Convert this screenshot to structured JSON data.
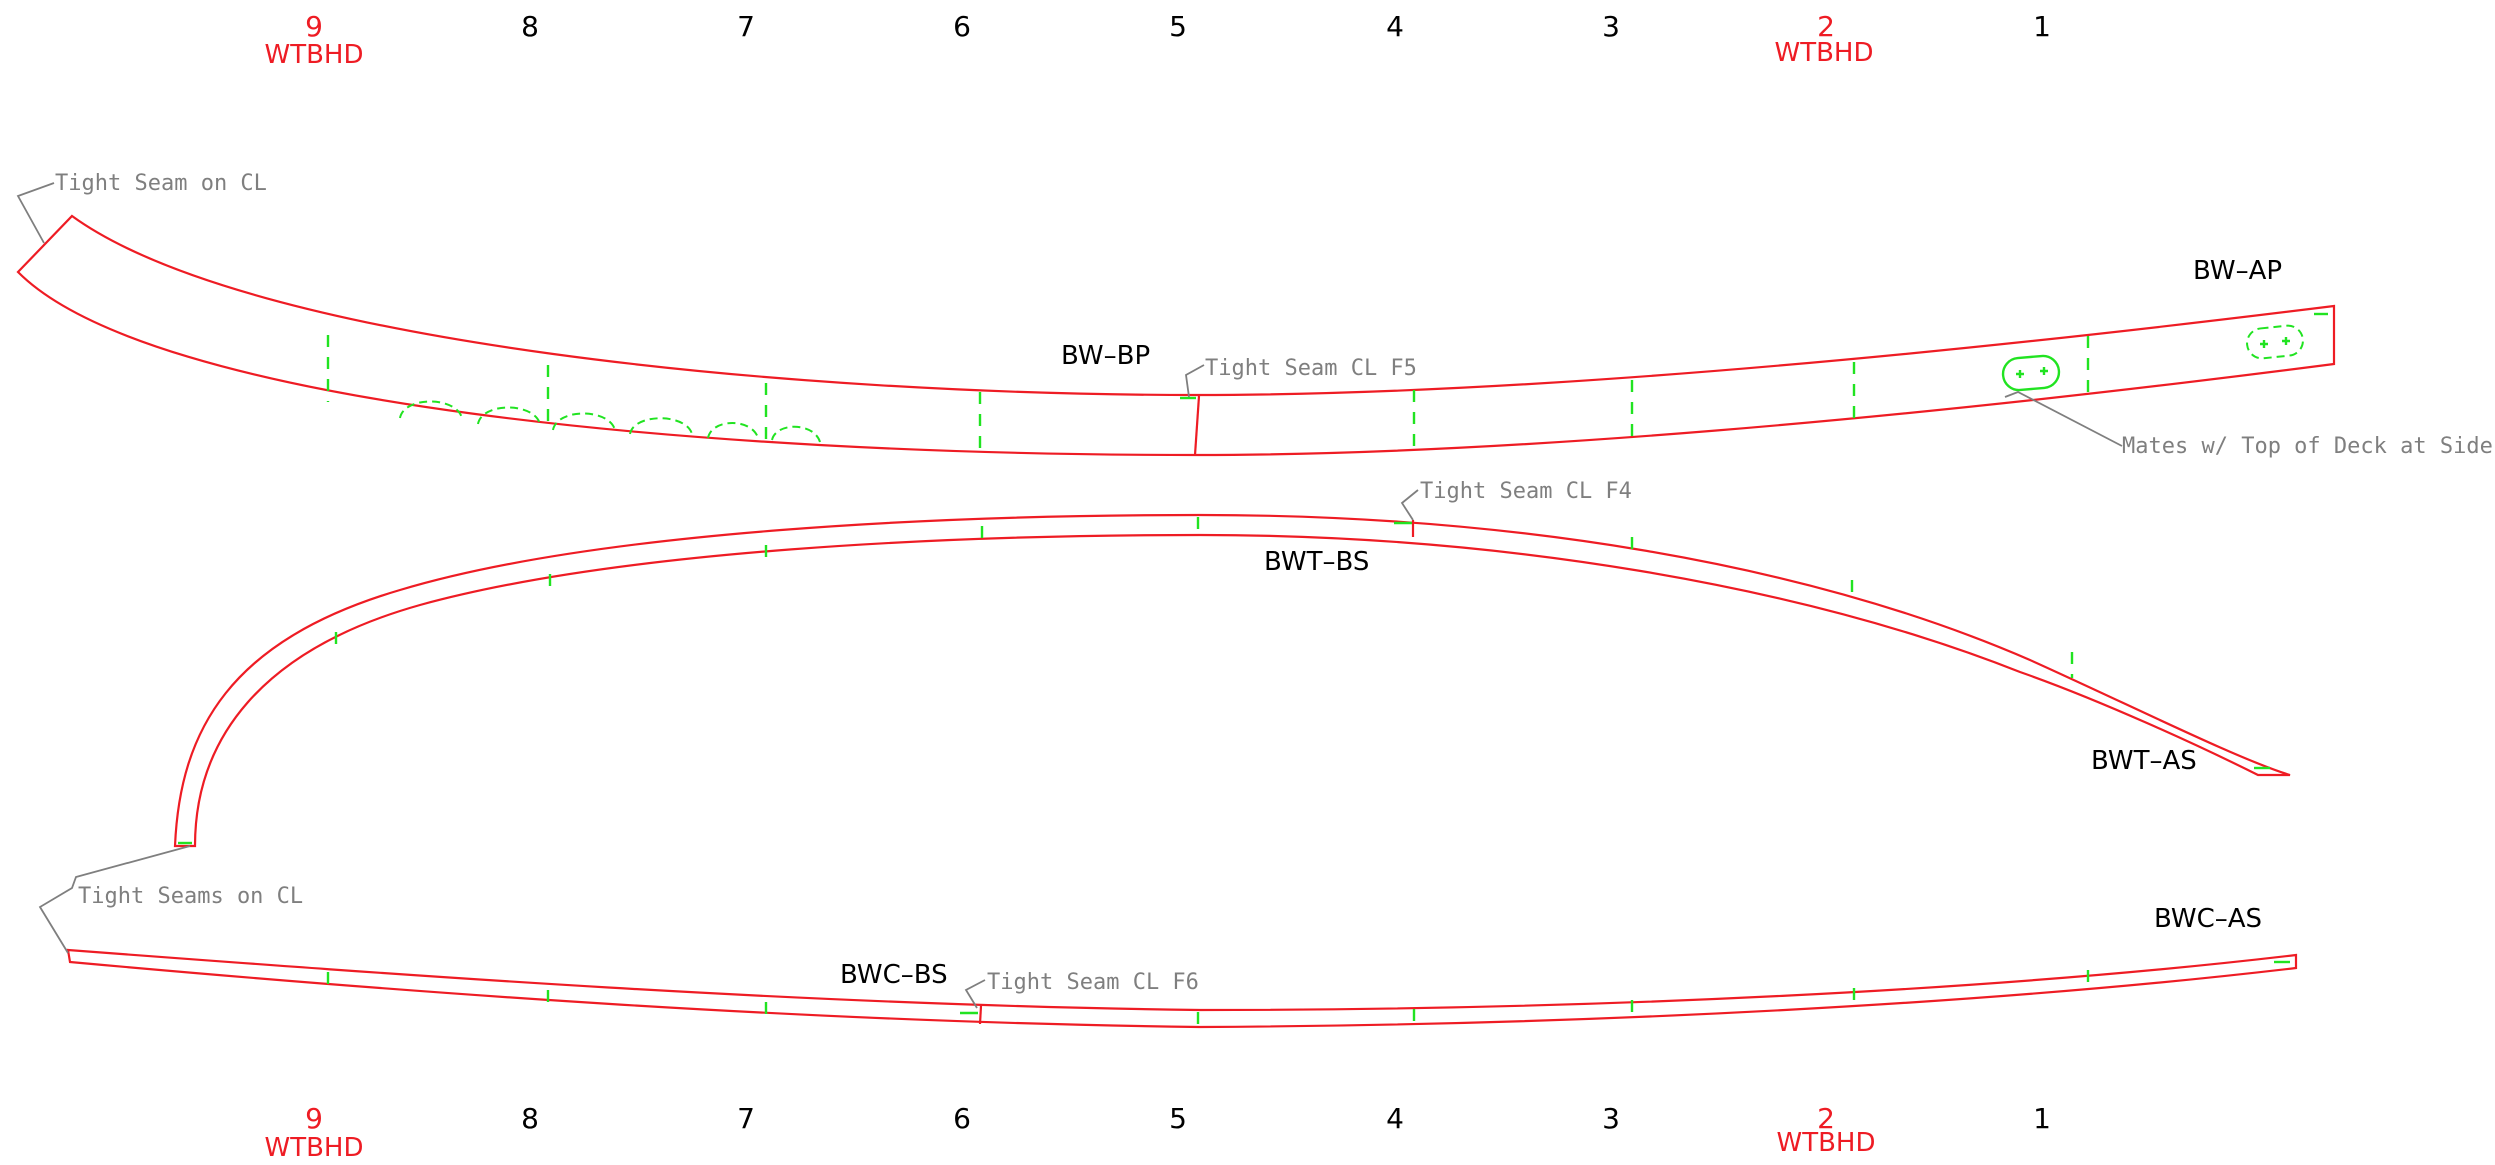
{
  "frames_top": [
    {
      "label": "9",
      "sub": "WTBHD",
      "bulkhead": true
    },
    {
      "label": "8",
      "sub": "",
      "bulkhead": false
    },
    {
      "label": "7",
      "sub": "",
      "bulkhead": false
    },
    {
      "label": "6",
      "sub": "",
      "bulkhead": false
    },
    {
      "label": "5",
      "sub": "",
      "bulkhead": false
    },
    {
      "label": "4",
      "sub": "",
      "bulkhead": false
    },
    {
      "label": "3",
      "sub": "",
      "bulkhead": false
    },
    {
      "label": "2",
      "sub": "WTBHD",
      "bulkhead": true
    },
    {
      "label": "1",
      "sub": "",
      "bulkhead": false
    }
  ],
  "frames_bottom": [
    {
      "label": "9",
      "sub": "WTBHD",
      "bulkhead": true
    },
    {
      "label": "8",
      "sub": "",
      "bulkhead": false
    },
    {
      "label": "7",
      "sub": "",
      "bulkhead": false
    },
    {
      "label": "6",
      "sub": "",
      "bulkhead": false
    },
    {
      "label": "5",
      "sub": "",
      "bulkhead": false
    },
    {
      "label": "4",
      "sub": "",
      "bulkhead": false
    },
    {
      "label": "3",
      "sub": "",
      "bulkhead": false
    },
    {
      "label": "2",
      "sub": "WTBHD",
      "bulkhead": true
    },
    {
      "label": "1",
      "sub": "",
      "bulkhead": false
    }
  ],
  "parts": {
    "bw_bp": "BW–BP",
    "bw_ap": "BW–AP",
    "bwt_bs": "BWT–BS",
    "bwt_as": "BWT–AS",
    "bwc_bs": "BWC–BS",
    "bwc_as": "BWC–AS"
  },
  "notes": {
    "tight_seam_cl": "Tight Seam on CL",
    "tight_seam_f5": "Tight Seam CL F5",
    "mates_deck": "Mates w/ Top of Deck at Side",
    "tight_seam_f4": "Tight Seam CL F4",
    "tight_seams_cl": "Tight Seams on CL",
    "tight_seam_f6": "Tight Seam CL F6"
  },
  "colors": {
    "outline": "#ee1c24",
    "frame_marks": "#21e321",
    "leaders": "#7f7f7f",
    "text": "#000000"
  }
}
